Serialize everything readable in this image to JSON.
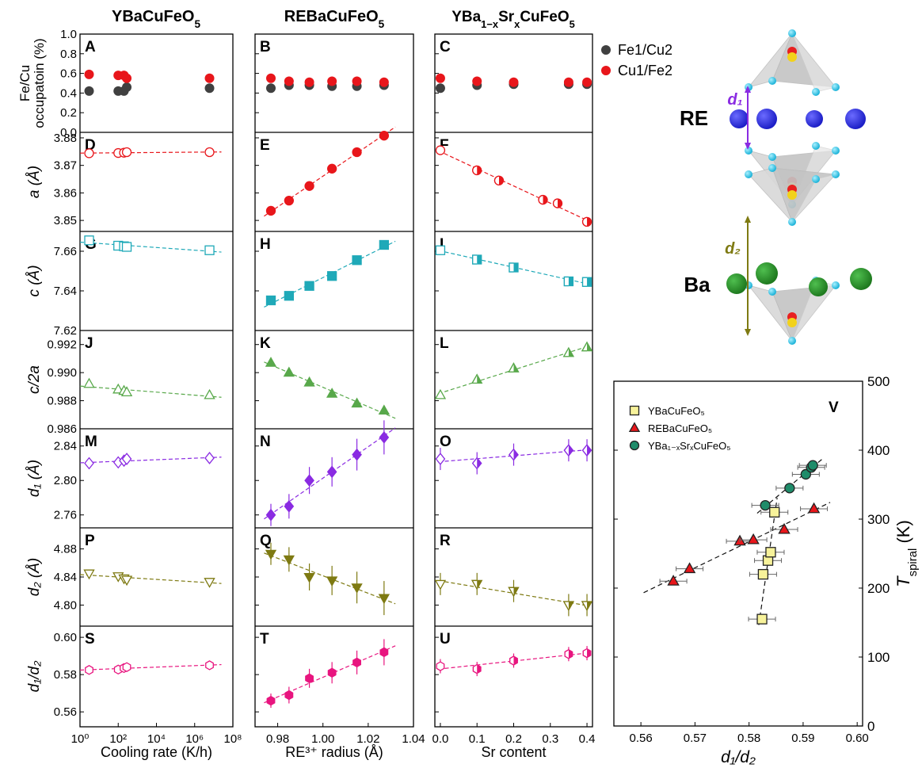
{
  "columns": [
    {
      "title": "YBaCuFeO",
      "title_sub": "5",
      "xlabel": "Cooling rate (K/h)"
    },
    {
      "title": "REBaCuFeO",
      "title_sub": "5",
      "xlabel": "RE³⁺ radius (Å)"
    },
    {
      "title": "YBa",
      "title_sub": "1−x",
      "title_mid": "Sr",
      "title_sub2": "x",
      "title_end": "CuFeO",
      "title_sub3": "5",
      "xlabel": "Sr content"
    }
  ],
  "row_labels": {
    "occ": [
      "Fe/Cu",
      "occupatoin (%)"
    ],
    "a": "a (Å)",
    "c": "c (Å)",
    "c2a": "c/2a",
    "d1": "d₁ (Å)",
    "d2": "d₂ (Å)",
    "d1d2": "d₁/d₂"
  },
  "x_ticks": {
    "col0": [
      "10⁰",
      "10²",
      "10⁴",
      "10⁶",
      "10⁸"
    ],
    "col1": [
      "0.98",
      "1.00",
      "1.02",
      "1.04"
    ],
    "col2": [
      "0.0",
      "0.1",
      "0.2",
      "0.3",
      "0.4"
    ]
  },
  "legend_occ": [
    "Fe1/Cu2",
    "Cu1/Fe2"
  ],
  "structure_labels": {
    "re": "RE",
    "ba": "Ba",
    "d1": "d₁",
    "d2": "d₂"
  },
  "colors": {
    "red": "#e8161b",
    "gray": "#404040",
    "cyan": "#1fa9b8",
    "green": "#58a84a",
    "purple": "#8a2be2",
    "olive": "#7e7a12",
    "magenta": "#e8157f",
    "blue": "#1d1fc7",
    "ba_green": "#1f7a1f",
    "teal": "#1f8c6a",
    "yellow": "#f7f29a"
  },
  "chart_data": [
    {
      "type": "scatter",
      "panels": [
        "A",
        "B",
        "C"
      ],
      "ylabel": "Fe/Cu occupatoin (%)",
      "ylim": [
        0.0,
        1.0
      ],
      "yticks": [
        "0.0",
        "0.2",
        "0.4",
        "0.6",
        "0.8",
        "1.0"
      ],
      "series": [
        {
          "name": "Fe1/Cu2",
          "col0": [
            [
              3,
              0.42
            ],
            [
              100,
              0.42
            ],
            [
              200,
              0.42
            ],
            [
              280,
              0.46
            ],
            [
              6000000,
              0.45
            ]
          ],
          "col1": [
            [
              0.977,
              0.45
            ],
            [
              0.985,
              0.48
            ],
            [
              0.994,
              0.48
            ],
            [
              1.004,
              0.47
            ],
            [
              1.015,
              0.47
            ],
            [
              1.027,
              0.48
            ]
          ],
          "col2": [
            [
              0.0,
              0.45
            ],
            [
              0.1,
              0.48
            ],
            [
              0.2,
              0.49
            ],
            [
              0.35,
              0.49
            ],
            [
              0.4,
              0.49
            ]
          ]
        },
        {
          "name": "Cu1/Fe2",
          "col0": [
            [
              3,
              0.59
            ],
            [
              100,
              0.58
            ],
            [
              200,
              0.58
            ],
            [
              280,
              0.55
            ],
            [
              6000000,
              0.55
            ]
          ],
          "col1": [
            [
              0.977,
              0.55
            ],
            [
              0.985,
              0.52
            ],
            [
              0.994,
              0.51
            ],
            [
              1.004,
              0.52
            ],
            [
              1.015,
              0.52
            ],
            [
              1.027,
              0.51
            ]
          ],
          "col2": [
            [
              0.0,
              0.55
            ],
            [
              0.1,
              0.52
            ],
            [
              0.2,
              0.51
            ],
            [
              0.35,
              0.51
            ],
            [
              0.4,
              0.51
            ]
          ]
        }
      ]
    },
    {
      "type": "scatter",
      "panels": [
        "D",
        "E",
        "F"
      ],
      "ylabel": "a (Å)",
      "ylim": [
        3.846,
        3.882
      ],
      "yticks": [
        "3.85",
        "3.86",
        "3.87",
        "3.88"
      ],
      "col0": [
        [
          3,
          3.8744
        ],
        [
          100,
          3.8745
        ],
        [
          200,
          3.8746
        ],
        [
          280,
          3.8748
        ],
        [
          6000000,
          3.8748
        ]
      ],
      "col1": [
        [
          0.977,
          3.8535
        ],
        [
          0.985,
          3.8572
        ],
        [
          0.994,
          3.8625
        ],
        [
          1.004,
          3.8688
        ],
        [
          1.015,
          3.8748
        ],
        [
          1.027,
          3.8808
        ]
      ],
      "col2": [
        [
          0.0,
          3.8755
        ],
        [
          0.1,
          3.8682
        ],
        [
          0.16,
          3.8645
        ],
        [
          0.28,
          3.8575
        ],
        [
          0.32,
          3.8562
        ],
        [
          0.4,
          3.8495
        ]
      ]
    },
    {
      "type": "scatter",
      "panels": [
        "G",
        "H",
        "I"
      ],
      "ylabel": "c (Å)",
      "ylim": [
        7.62,
        7.67
      ],
      "yticks": [
        "7.62",
        "7.64",
        "7.66"
      ],
      "col0": [
        [
          3,
          7.6655
        ],
        [
          100,
          7.6628
        ],
        [
          200,
          7.6625
        ],
        [
          280,
          7.6622
        ],
        [
          6000000,
          7.6605
        ]
      ],
      "col1": [
        [
          0.977,
          7.6352
        ],
        [
          0.985,
          7.6375
        ],
        [
          0.994,
          7.6425
        ],
        [
          1.004,
          7.6475
        ],
        [
          1.015,
          7.6555
        ],
        [
          1.027,
          7.6632
        ]
      ],
      "col2": [
        [
          0.0,
          7.6605
        ],
        [
          0.1,
          7.6558
        ],
        [
          0.2,
          7.6518
        ],
        [
          0.35,
          7.6448
        ],
        [
          0.4,
          7.6445
        ]
      ]
    },
    {
      "type": "scatter",
      "panels": [
        "J",
        "K",
        "L"
      ],
      "ylabel": "c/2a",
      "ylim": [
        0.986,
        0.993
      ],
      "yticks": [
        "0.986",
        "0.988",
        "0.990",
        "0.992"
      ],
      "col0": [
        [
          3,
          0.9892
        ],
        [
          100,
          0.9888
        ],
        [
          200,
          0.9887
        ],
        [
          280,
          0.9886
        ],
        [
          6000000,
          0.9884
        ]
      ],
      "col1": [
        [
          0.977,
          0.9907
        ],
        [
          0.985,
          0.99
        ],
        [
          0.994,
          0.9893
        ],
        [
          1.004,
          0.9885
        ],
        [
          1.015,
          0.9878
        ],
        [
          1.027,
          0.9873
        ]
      ],
      "col2": [
        [
          0.0,
          0.9884
        ],
        [
          0.1,
          0.9895
        ],
        [
          0.2,
          0.9903
        ],
        [
          0.35,
          0.9914
        ],
        [
          0.4,
          0.9918
        ]
      ]
    },
    {
      "type": "scatter",
      "panels": [
        "M",
        "N",
        "O"
      ],
      "ylabel": "d₁ (Å)",
      "ylim": [
        2.745,
        2.86
      ],
      "yticks": [
        "2.76",
        "2.80",
        "2.84"
      ],
      "col0": [
        [
          3,
          2.82
        ],
        [
          100,
          2.821
        ],
        [
          200,
          2.823
        ],
        [
          280,
          2.825
        ],
        [
          6000000,
          2.826
        ]
      ],
      "col1": [
        [
          0.977,
          2.76
        ],
        [
          0.985,
          2.77
        ],
        [
          0.994,
          2.8
        ],
        [
          1.004,
          2.81
        ],
        [
          1.015,
          2.83
        ],
        [
          1.027,
          2.85
        ]
      ],
      "col2": [
        [
          0.0,
          2.825
        ],
        [
          0.1,
          2.82
        ],
        [
          0.2,
          2.83
        ],
        [
          0.35,
          2.835
        ],
        [
          0.4,
          2.835
        ]
      ]
    },
    {
      "type": "scatter",
      "panels": [
        "P",
        "Q",
        "R"
      ],
      "ylabel": "d₂ (Å)",
      "ylim": [
        4.77,
        4.91
      ],
      "yticks": [
        "4.80",
        "4.84",
        "4.88"
      ],
      "col0": [
        [
          3,
          4.845
        ],
        [
          100,
          4.841
        ],
        [
          200,
          4.838
        ],
        [
          280,
          4.836
        ],
        [
          6000000,
          4.833
        ]
      ],
      "col1": [
        [
          0.977,
          4.873
        ],
        [
          0.985,
          4.865
        ],
        [
          0.994,
          4.84
        ],
        [
          1.004,
          4.835
        ],
        [
          1.015,
          4.825
        ],
        [
          1.027,
          4.81
        ]
      ],
      "col2": [
        [
          0.0,
          4.83
        ],
        [
          0.1,
          4.83
        ],
        [
          0.2,
          4.82
        ],
        [
          0.35,
          4.8
        ],
        [
          0.4,
          4.8
        ]
      ]
    },
    {
      "type": "scatter",
      "panels": [
        "S",
        "T",
        "U"
      ],
      "ylabel": "d₁/d₂",
      "ylim": [
        0.552,
        0.606
      ],
      "yticks": [
        "0.56",
        "0.58",
        "0.60"
      ],
      "col0": [
        [
          3,
          0.5825
        ],
        [
          100,
          0.5827
        ],
        [
          200,
          0.5835
        ],
        [
          280,
          0.584
        ],
        [
          6000000,
          0.585
        ]
      ],
      "col1": [
        [
          0.977,
          0.566
        ],
        [
          0.985,
          0.569
        ],
        [
          0.994,
          0.578
        ],
        [
          1.004,
          0.581
        ],
        [
          1.015,
          0.5865
        ],
        [
          1.027,
          0.592
        ]
      ],
      "col2": [
        [
          0.0,
          0.5845
        ],
        [
          0.1,
          0.583
        ],
        [
          0.2,
          0.5875
        ],
        [
          0.35,
          0.591
        ],
        [
          0.4,
          0.5915
        ]
      ]
    },
    {
      "type": "scatter",
      "panel": "V",
      "xlabel": "d₁/d₂",
      "ylabel": "T",
      "ylabel_sub": "spiral",
      "ylabel_unit": " (K)",
      "xlim": [
        0.555,
        0.601
      ],
      "ylim": [
        0,
        500
      ],
      "xticks": [
        "0.56",
        "0.57",
        "0.58",
        "0.59",
        "0.60"
      ],
      "yticks": [
        "0",
        "100",
        "200",
        "300",
        "400",
        "500"
      ],
      "legend": [
        "YBaCuFeO₅",
        "REBaCuFeO₅",
        "YBa₁₋ₓSrₓCuFeO₅"
      ],
      "series": [
        {
          "name": "YBaCuFeO₅",
          "points": [
            [
              0.5824,
              155
            ],
            [
              0.5826,
              220
            ],
            [
              0.5835,
              240
            ],
            [
              0.584,
              252
            ],
            [
              0.5847,
              310
            ]
          ]
        },
        {
          "name": "REBaCuFeO₅",
          "points": [
            [
              0.566,
              210
            ],
            [
              0.569,
              228
            ],
            [
              0.5783,
              268
            ],
            [
              0.5808,
              270
            ],
            [
              0.5865,
              285
            ],
            [
              0.592,
              315
            ]
          ]
        },
        {
          "name": "YBa₁₋ₓSrₓCuFeO₅",
          "points": [
            [
              0.583,
              320
            ],
            [
              0.5875,
              345
            ],
            [
              0.5905,
              365
            ],
            [
              0.5915,
              375
            ],
            [
              0.5918,
              378
            ]
          ]
        }
      ]
    }
  ]
}
